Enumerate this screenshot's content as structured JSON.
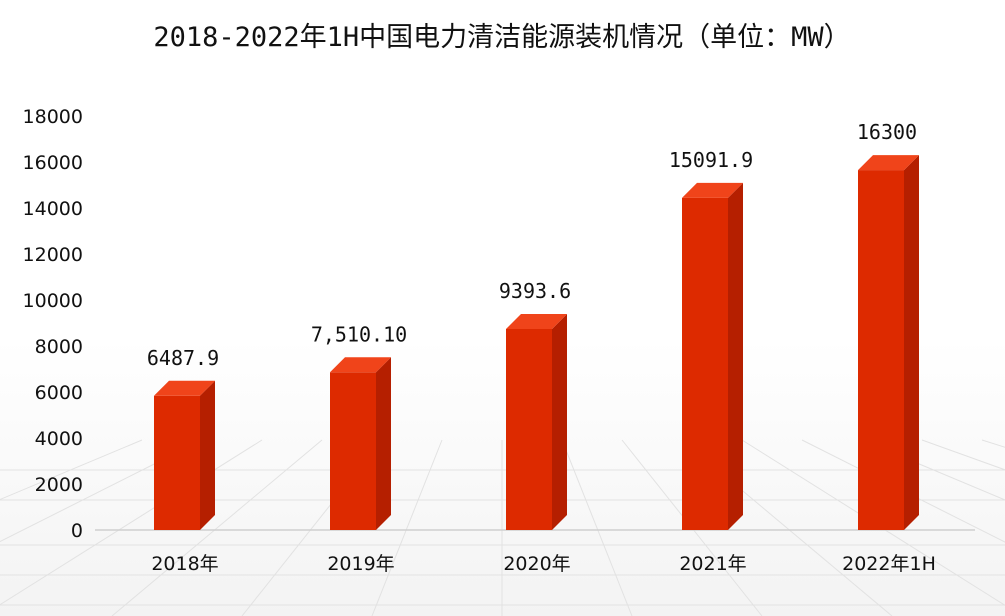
{
  "chart_data": {
    "type": "bar",
    "title": "2018-2022年1H中国电力清洁能源装机情况（单位：MW）",
    "xlabel": "",
    "ylabel": "",
    "categories": [
      "2018年",
      "2019年",
      "2020年",
      "2021年",
      "2022年1H"
    ],
    "values": [
      6487.9,
      7510.1,
      9393.6,
      15091.9,
      16300
    ],
    "data_labels": [
      "6487.9",
      "7,510.10",
      "9393.6",
      "15091.9",
      "16300"
    ],
    "ylim": [
      0,
      18000
    ],
    "yticks": [
      "0",
      "2000",
      "4000",
      "6000",
      "8000",
      "10000",
      "12000",
      "14000",
      "16000",
      "18000"
    ],
    "grid": false,
    "legend": "none",
    "bar_color": "#dd2a00",
    "bar_side_color": "#b51f00",
    "bar_top_color": "#f0441a"
  }
}
